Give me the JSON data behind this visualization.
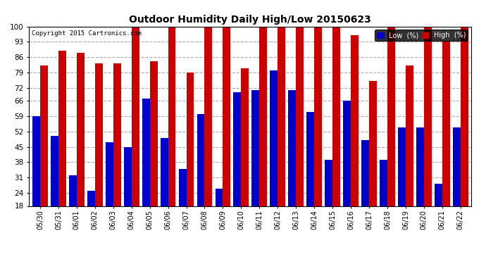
{
  "title": "Outdoor Humidity Daily High/Low 20150623",
  "copyright": "Copyright 2015 Cartronics.com",
  "legend_low": "Low  (%)",
  "legend_high": "High  (%)",
  "low_color": "#0000cc",
  "high_color": "#cc0000",
  "background_color": "#ffffff",
  "plot_background": "#ffffff",
  "ylim": [
    18,
    100
  ],
  "yticks": [
    18,
    24,
    31,
    38,
    45,
    52,
    59,
    66,
    72,
    79,
    86,
    93,
    100
  ],
  "categories": [
    "05/30",
    "05/31",
    "06/01",
    "06/02",
    "06/03",
    "06/04",
    "06/05",
    "06/06",
    "06/07",
    "06/08",
    "06/09",
    "06/10",
    "06/11",
    "06/12",
    "06/13",
    "06/14",
    "06/15",
    "06/16",
    "06/17",
    "06/18",
    "06/19",
    "06/20",
    "06/21",
    "06/22"
  ],
  "high_values": [
    82,
    89,
    88,
    83,
    83,
    100,
    84,
    100,
    79,
    100,
    100,
    81,
    100,
    100,
    100,
    100,
    100,
    96,
    75,
    100,
    82,
    100,
    93,
    100
  ],
  "low_values": [
    59,
    50,
    32,
    25,
    47,
    45,
    67,
    49,
    35,
    60,
    26,
    70,
    71,
    80,
    71,
    61,
    39,
    66,
    48,
    39,
    54,
    54,
    28,
    54
  ]
}
